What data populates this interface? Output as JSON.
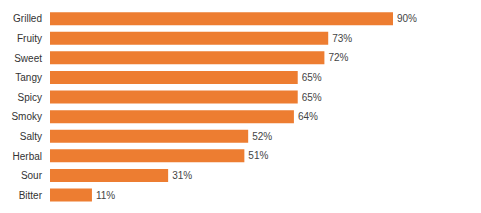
{
  "chart_data": {
    "type": "bar",
    "orientation": "horizontal",
    "categories": [
      "Grilled",
      "Fruity",
      "Sweet",
      "Tangy",
      "Spicy",
      "Smoky",
      "Salty",
      "Herbal",
      "Sour",
      "Bitter"
    ],
    "values": [
      90,
      73,
      72,
      65,
      65,
      64,
      52,
      51,
      31,
      11
    ],
    "value_labels": [
      "90%",
      "73%",
      "72%",
      "65%",
      "65%",
      "64%",
      "52%",
      "51%",
      "31%",
      "11%"
    ],
    "color": "#ED7D31",
    "data_labels": true,
    "tick_labels": "y",
    "grid": false
  }
}
